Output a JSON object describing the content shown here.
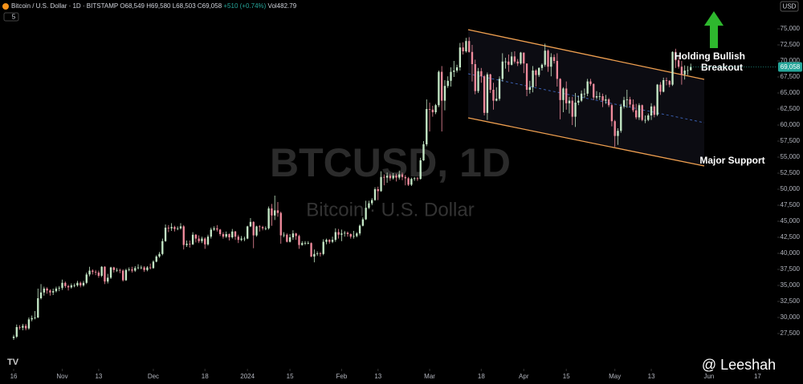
{
  "header": {
    "symbol": "Bitcoin / U.S. Dollar · 1D · BITSTAMP",
    "open_text": "O68,549",
    "high_text": "H69,580",
    "low_text": "L68,503",
    "close_text": "C69,058",
    "change_text": "+510 (+0.74%)",
    "volume_text": "Vol482.79",
    "indicators_badge": "5",
    "currency": "USD"
  },
  "watermark": {
    "ticker": "BTCUSD, 1D",
    "name": "Bitcoin · U.S. Dollar",
    "author": "@ Leeshah"
  },
  "chart_data": {
    "type": "candlestick",
    "up_color": "#c4e8c6",
    "down_color": "#f08a9c",
    "grid": false,
    "last_price_label": "69,058",
    "last_price_color": "#26a69a",
    "annotations": [
      "Holding Bullish",
      "Breakout",
      "Major Support"
    ],
    "xlim": [
      -4.5,
      251.5
    ],
    "xticks": [
      {
        "value": 0,
        "label": "16"
      },
      {
        "value": 16,
        "label": "Nov"
      },
      {
        "value": 28,
        "label": "13"
      },
      {
        "value": 46,
        "label": "Dec"
      },
      {
        "value": 63,
        "label": "18"
      },
      {
        "value": 77,
        "label": "2024"
      },
      {
        "value": 91,
        "label": "15"
      },
      {
        "value": 108,
        "label": "Feb"
      },
      {
        "value": 120,
        "label": "13"
      },
      {
        "value": 137,
        "label": "Mar"
      },
      {
        "value": 154,
        "label": "18"
      },
      {
        "value": 168,
        "label": "Apr"
      },
      {
        "value": 182,
        "label": "15"
      },
      {
        "value": 198,
        "label": "May"
      },
      {
        "value": 210,
        "label": "13"
      },
      {
        "value": 229,
        "label": "Jun"
      },
      {
        "value": 245,
        "label": "17"
      }
    ],
    "ylim": [
      22000,
      79500
    ],
    "yticks": [
      {
        "value": 27500,
        "label": "27,500"
      },
      {
        "value": 30000,
        "label": "30,000"
      },
      {
        "value": 32500,
        "label": "32,500"
      },
      {
        "value": 35000,
        "label": "35,000"
      },
      {
        "value": 37500,
        "label": "37,500"
      },
      {
        "value": 40000,
        "label": "40,000"
      },
      {
        "value": 42500,
        "label": "42,500"
      },
      {
        "value": 45000,
        "label": "45,000"
      },
      {
        "value": 47500,
        "label": "47,500"
      },
      {
        "value": 50000,
        "label": "50,000"
      },
      {
        "value": 52500,
        "label": "52,500"
      },
      {
        "value": 55000,
        "label": "55,000"
      },
      {
        "value": 57500,
        "label": "57,500"
      },
      {
        "value": 60000,
        "label": "60,000"
      },
      {
        "value": 62500,
        "label": "62,500"
      },
      {
        "value": 65000,
        "label": "65,000"
      },
      {
        "value": 67500,
        "label": "67,500"
      },
      {
        "value": 70000,
        "label": "70,000"
      },
      {
        "value": 72500,
        "label": "72,500"
      },
      {
        "value": 75000,
        "label": "75,000"
      }
    ],
    "x": [
      0,
      1,
      2,
      3,
      4,
      5,
      6,
      7,
      8,
      9,
      10,
      11,
      12,
      13,
      14,
      15,
      16,
      17,
      18,
      19,
      20,
      21,
      22,
      23,
      24,
      25,
      26,
      27,
      28,
      29,
      30,
      31,
      32,
      33,
      34,
      35,
      36,
      37,
      38,
      39,
      40,
      41,
      42,
      43,
      44,
      45,
      46,
      47,
      48,
      49,
      50,
      51,
      52,
      53,
      54,
      55,
      56,
      57,
      58,
      59,
      60,
      61,
      62,
      63,
      64,
      65,
      66,
      67,
      68,
      69,
      70,
      71,
      72,
      73,
      74,
      75,
      76,
      77,
      78,
      79,
      80,
      81,
      82,
      83,
      84,
      85,
      86,
      87,
      88,
      89,
      90,
      91,
      92,
      93,
      94,
      95,
      96,
      97,
      98,
      99,
      100,
      101,
      102,
      103,
      104,
      105,
      106,
      107,
      108,
      109,
      110,
      111,
      112,
      113,
      114,
      115,
      116,
      117,
      118,
      119,
      120,
      121,
      122,
      123,
      124,
      125,
      126,
      127,
      128,
      129,
      130,
      131,
      132,
      133,
      134,
      135,
      136,
      137,
      138,
      139,
      140,
      141,
      142,
      143,
      144,
      145,
      146,
      147,
      148,
      149,
      150,
      151,
      152,
      153,
      154,
      155,
      156,
      157,
      158,
      159,
      160,
      161,
      162,
      163,
      164,
      165,
      166,
      167,
      168,
      169,
      170,
      171,
      172,
      173,
      174,
      175,
      176,
      177,
      178,
      179,
      180,
      181,
      182,
      183,
      184,
      185,
      186,
      187,
      188,
      189,
      190,
      191,
      192,
      193,
      194,
      195,
      196,
      197,
      198,
      199,
      200,
      201,
      202,
      203,
      204,
      205,
      206,
      207,
      208,
      209,
      210,
      211,
      212,
      213,
      214,
      215,
      216,
      217,
      218,
      219,
      220,
      221,
      222,
      223
    ],
    "open": [
      26800,
      27000,
      28500,
      28400,
      28700,
      28300,
      29700,
      29900,
      30000,
      33000,
      33900,
      34500,
      34200,
      33900,
      34100,
      34500,
      34600,
      35400,
      34900,
      34700,
      35000,
      35000,
      35400,
      35000,
      35400,
      36700,
      37300,
      37100,
      37000,
      36500,
      37900,
      35600,
      36200,
      37800,
      37400,
      37400,
      37300,
      35800,
      37400,
      37500,
      37300,
      37700,
      37800,
      37800,
      37400,
      37800,
      37700,
      38700,
      39500,
      39900,
      41900,
      44000,
      43900,
      44100,
      43800,
      43900,
      44200,
      41300,
      41500,
      41400,
      42900,
      42300,
      41900,
      42300,
      41400,
      42600,
      43700,
      43900,
      43700,
      43000,
      42600,
      43000,
      42500,
      43400,
      42600,
      42100,
      42300,
      42300,
      44200,
      44900,
      42800,
      44200,
      44100,
      43900,
      43900,
      47000,
      45900,
      46700,
      46300,
      42800,
      42900,
      41800,
      42500,
      43100,
      42700,
      41300,
      41600,
      41600,
      41600,
      39500,
      39900,
      40000,
      39900,
      41800,
      42100,
      41800,
      42100,
      43300,
      42900,
      43100,
      43200,
      43000,
      42600,
      42700,
      43100,
      44300,
      45300,
      47100,
      47800,
      48300,
      50000,
      49700,
      51900,
      51800,
      52100,
      51700,
      52100,
      51800,
      52300,
      51900,
      51700,
      50700,
      51600,
      51700,
      51600,
      54500,
      57000,
      62500,
      62400,
      62000,
      63100,
      68300,
      63800,
      66100,
      66900,
      68300,
      68500,
      69000,
      72100,
      71500,
      73100,
      71400,
      69500,
      65300,
      68400,
      67600,
      61900,
      67900,
      65500,
      63800,
      64100,
      67200,
      69900,
      69900,
      69400,
      70700,
      69900,
      69600,
      71300,
      69600,
      65500,
      65900,
      68500,
      67800,
      68900,
      69400,
      71600,
      69100,
      70600,
      70000,
      67200,
      63900,
      65700,
      63400,
      63800,
      61300,
      63500,
      63800,
      64900,
      64900,
      66800,
      66400,
      64300,
      64500,
      64500,
      63800,
      64000,
      63100,
      60600,
      58300,
      59100,
      62900,
      63900,
      64000,
      63200,
      62300,
      61200,
      63100,
      60800,
      60800,
      61500,
      62900,
      61600,
      66300,
      65200,
      67000,
      66900,
      66300,
      71400,
      70100,
      69100,
      67900,
      68500,
      68549
    ],
    "high": [
      27300,
      28900,
      28800,
      29000,
      29000,
      30000,
      30300,
      31000,
      34500,
      35200,
      34800,
      34700,
      34400,
      34500,
      34800,
      34900,
      35900,
      35600,
      35100,
      35300,
      35300,
      35700,
      35600,
      35700,
      37000,
      37900,
      37500,
      37400,
      37300,
      38000,
      38000,
      36800,
      37900,
      37900,
      37700,
      37600,
      37500,
      37600,
      37800,
      37900,
      38000,
      38300,
      38100,
      38000,
      38000,
      38400,
      38900,
      39700,
      40200,
      42300,
      44500,
      44400,
      44700,
      44300,
      44200,
      44700,
      44400,
      42000,
      42000,
      43300,
      43000,
      42800,
      42600,
      42500,
      42900,
      44000,
      44200,
      44400,
      43800,
      43300,
      43400,
      43100,
      43800,
      43500,
      42900,
      42700,
      42600,
      44300,
      45500,
      45000,
      44300,
      44400,
      44300,
      44200,
      47300,
      47700,
      49000,
      48000,
      46500,
      43300,
      43100,
      43000,
      43600,
      43200,
      42900,
      41900,
      41900,
      41900,
      41700,
      40600,
      40300,
      40200,
      42200,
      42300,
      42200,
      42600,
      43900,
      43800,
      43700,
      43500,
      43400,
      43100,
      43500,
      43300,
      44500,
      45600,
      48200,
      48200,
      48600,
      50300,
      50400,
      52800,
      52300,
      52600,
      52400,
      52500,
      52400,
      52900,
      52600,
      52200,
      51900,
      51800,
      51900,
      51900,
      54900,
      57500,
      64000,
      63500,
      63000,
      63300,
      68500,
      69200,
      67000,
      67600,
      69000,
      70000,
      69400,
      72800,
      72900,
      73600,
      73700,
      72500,
      70200,
      68900,
      68900,
      67800,
      68200,
      68000,
      66600,
      65900,
      67600,
      71200,
      70500,
      71000,
      71400,
      71500,
      70300,
      71400,
      71300,
      69600,
      66900,
      69200,
      68700,
      69000,
      69600,
      72700,
      71800,
      71200,
      71000,
      71200,
      67300,
      65900,
      66800,
      64400,
      64400,
      65000,
      64600,
      65400,
      65700,
      67200,
      67200,
      66500,
      65300,
      65100,
      64900,
      64700,
      64200,
      63300,
      60800,
      59500,
      63300,
      64400,
      65500,
      64400,
      64000,
      63300,
      63400,
      63200,
      61500,
      61800,
      63400,
      63100,
      66400,
      66700,
      67400,
      67400,
      67000,
      71500,
      71900,
      70600,
      70000,
      69300,
      69200,
      69580
    ],
    "low": [
      26500,
      26800,
      28100,
      28000,
      28000,
      28100,
      29400,
      29700,
      29900,
      32800,
      33400,
      33700,
      33400,
      33500,
      33900,
      34100,
      34300,
      34600,
      34200,
      34500,
      34700,
      34800,
      34700,
      34800,
      35200,
      36400,
      36700,
      36600,
      36200,
      36300,
      35200,
      35300,
      36000,
      37000,
      37100,
      36900,
      35600,
      35700,
      37200,
      37000,
      37100,
      37500,
      37500,
      37100,
      37200,
      37500,
      37600,
      38600,
      39300,
      39700,
      41800,
      43300,
      43500,
      43400,
      43600,
      43700,
      40600,
      41000,
      40900,
      41300,
      41700,
      41600,
      41600,
      40700,
      41200,
      42300,
      43500,
      43400,
      42700,
      42300,
      42400,
      42000,
      42300,
      42100,
      41600,
      41900,
      41900,
      42200,
      44100,
      40800,
      42600,
      43400,
      43600,
      43600,
      43700,
      44300,
      45200,
      45700,
      41500,
      42500,
      41700,
      41700,
      42100,
      42100,
      40700,
      41200,
      41300,
      41400,
      39400,
      38600,
      39600,
      39500,
      39700,
      41400,
      41500,
      41600,
      41800,
      42300,
      41900,
      42600,
      42600,
      42300,
      42300,
      42500,
      42800,
      44200,
      45200,
      46900,
      47500,
      48200,
      48300,
      49600,
      50600,
      51000,
      51300,
      51500,
      51200,
      51500,
      51400,
      50600,
      50500,
      50500,
      51300,
      51300,
      51500,
      54400,
      56700,
      59000,
      61300,
      61700,
      62800,
      59000,
      62300,
      65800,
      66000,
      67500,
      68200,
      68500,
      71000,
      71300,
      71300,
      66800,
      64800,
      65000,
      66600,
      61500,
      60800,
      65000,
      62400,
      63700,
      63800,
      66800,
      68800,
      68300,
      69300,
      69600,
      69200,
      69400,
      68100,
      64500,
      64900,
      65100,
      66000,
      67500,
      68500,
      69100,
      68300,
      67600,
      69600,
      66000,
      60900,
      62000,
      62400,
      61800,
      60000,
      59700,
      63100,
      63600,
      64200,
      64500,
      66100,
      63900,
      64000,
      63900,
      62800,
      63300,
      62800,
      59800,
      56600,
      56900,
      58800,
      62600,
      62700,
      62800,
      62000,
      60900,
      60800,
      60600,
      60300,
      60600,
      60800,
      61200,
      61400,
      64700,
      65100,
      66200,
      65900,
      66100,
      68900,
      68800,
      66300,
      67100,
      67800,
      68503
    ],
    "close": [
      27000,
      28500,
      28400,
      28700,
      28300,
      29700,
      29900,
      30000,
      33000,
      33900,
      34500,
      34200,
      33900,
      34100,
      34500,
      34600,
      35400,
      34900,
      34700,
      35000,
      35000,
      35400,
      35000,
      35400,
      36700,
      37300,
      37100,
      37000,
      36500,
      37900,
      35600,
      36200,
      37800,
      37400,
      37400,
      37300,
      35800,
      37400,
      37500,
      37300,
      37700,
      37800,
      37800,
      37400,
      37800,
      37700,
      38700,
      39500,
      39900,
      41900,
      44000,
      43900,
      44100,
      43800,
      43900,
      44200,
      41300,
      41500,
      41400,
      42900,
      42300,
      41900,
      42300,
      41400,
      42600,
      43700,
      43900,
      43700,
      43000,
      42600,
      43000,
      42500,
      43400,
      42600,
      42100,
      42300,
      42300,
      44200,
      44900,
      42800,
      44200,
      44100,
      43900,
      43900,
      47000,
      45900,
      46700,
      46300,
      42800,
      42900,
      41800,
      42500,
      43100,
      42700,
      41300,
      41600,
      41600,
      41600,
      39500,
      39900,
      40000,
      39900,
      41800,
      42100,
      41800,
      42100,
      43300,
      42900,
      43100,
      43200,
      43000,
      42600,
      42700,
      43100,
      44300,
      45300,
      47100,
      47800,
      48300,
      50000,
      49700,
      51900,
      51800,
      52100,
      51700,
      52100,
      51800,
      52300,
      51900,
      51700,
      50700,
      51600,
      51700,
      51600,
      54500,
      57000,
      62500,
      62400,
      62000,
      63100,
      68300,
      63800,
      66100,
      66900,
      68300,
      68500,
      69000,
      72100,
      71500,
      73100,
      71400,
      69500,
      65300,
      68400,
      67600,
      61900,
      67900,
      65500,
      63800,
      64100,
      67200,
      69900,
      69900,
      69400,
      70700,
      69900,
      69600,
      71300,
      69600,
      65500,
      65900,
      68500,
      67800,
      68900,
      69400,
      71600,
      69100,
      70600,
      70000,
      67200,
      63900,
      65700,
      63400,
      63800,
      61300,
      63500,
      63800,
      64900,
      64900,
      66800,
      66400,
      64300,
      64500,
      64500,
      63800,
      64000,
      63100,
      60600,
      58300,
      59100,
      62900,
      63900,
      64000,
      63200,
      62300,
      61200,
      63100,
      60800,
      60800,
      61500,
      62900,
      61600,
      66300,
      65200,
      67000,
      66900,
      66300,
      71400,
      70100,
      69100,
      67900,
      68500,
      68549,
      69058
    ]
  }
}
